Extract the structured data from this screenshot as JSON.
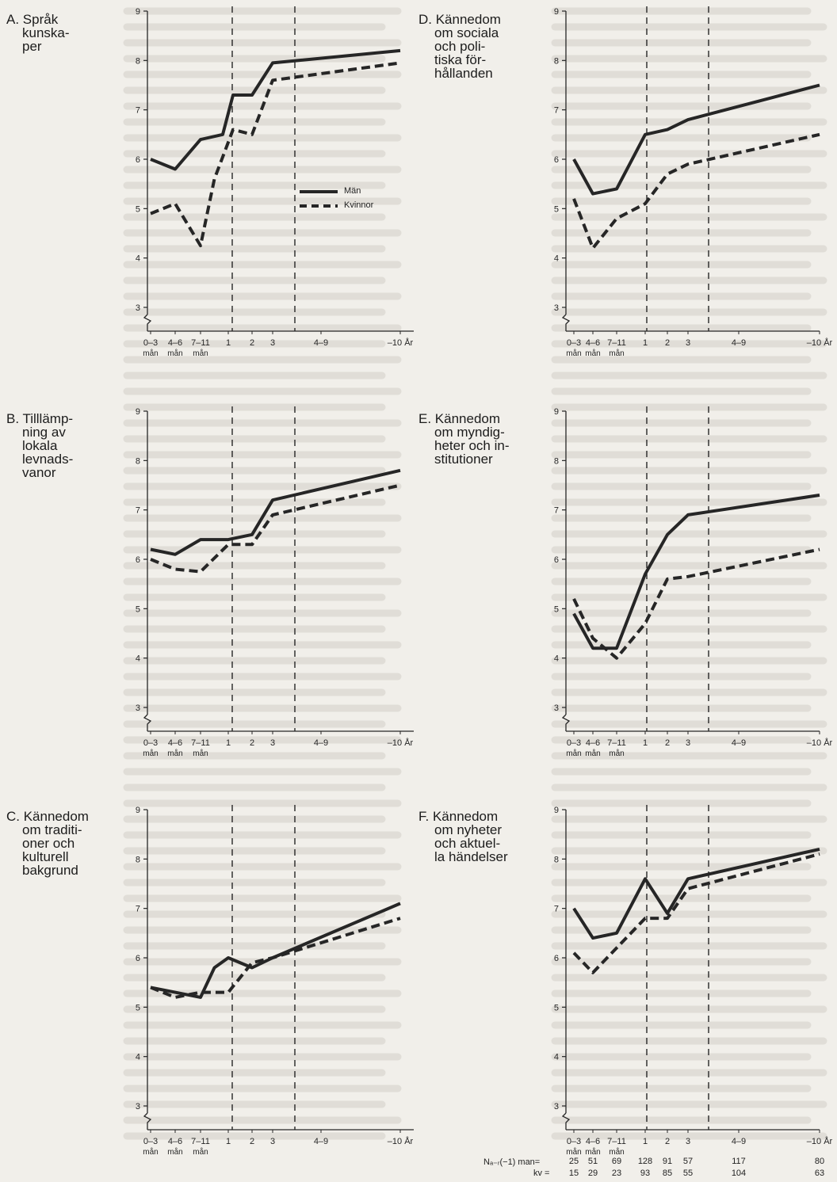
{
  "colors": {
    "ink": "#262626",
    "paper": "#f1efea"
  },
  "legend": {
    "solid_label": "Män",
    "dashed_label": "Kvinnor"
  },
  "footer": {
    "man_label": "Nₐ₋ᵣ(−1) man=",
    "kv_label": "kv =",
    "man_values": [
      "25",
      "51",
      "69",
      "128",
      "91",
      "57",
      "117",
      "80"
    ],
    "kv_values": [
      "15",
      "29",
      "23",
      "93",
      "85",
      "55",
      "104",
      "63"
    ]
  },
  "chart_data": [
    {
      "id": "A",
      "type": "line",
      "title_lines": [
        "A. Språk",
        "kunska-",
        "per"
      ],
      "x_tick_labels": [
        "0–3",
        "4–6",
        "7–11",
        "1",
        "2",
        "3",
        "4–9",
        "–10 År"
      ],
      "x_sub_labels": [
        "mån",
        "mån",
        "mån"
      ],
      "y_ticks": [
        3,
        4,
        5,
        6,
        7,
        8,
        9
      ],
      "ylim": [
        3,
        9
      ],
      "series": [
        {
          "name": "Män",
          "style": "solid",
          "points": [
            [
              0,
              6.0
            ],
            [
              1,
              5.8
            ],
            [
              2,
              6.4
            ],
            [
              2.8,
              6.5
            ],
            [
              3.2,
              7.3
            ],
            [
              4,
              7.3
            ],
            [
              5,
              7.95
            ],
            [
              7,
              8.2
            ]
          ]
        },
        {
          "name": "Kvinnor",
          "style": "dashed",
          "points": [
            [
              0,
              4.9
            ],
            [
              1,
              5.1
            ],
            [
              2,
              4.25
            ],
            [
              2.5,
              5.6
            ],
            [
              3.2,
              6.6
            ],
            [
              4,
              6.5
            ],
            [
              5,
              7.6
            ],
            [
              7,
              7.95
            ]
          ]
        }
      ]
    },
    {
      "id": "B",
      "type": "line",
      "title_lines": [
        "B. Tilllämp-",
        "ning av",
        "lokala",
        "levnads-",
        "vanor"
      ],
      "x_tick_labels": [
        "0–3",
        "4–6",
        "7–11",
        "1",
        "2",
        "3",
        "4–9",
        "–10 År"
      ],
      "x_sub_labels": [
        "mån",
        "mån",
        "mån"
      ],
      "y_ticks": [
        3,
        4,
        5,
        6,
        7,
        8,
        9
      ],
      "ylim": [
        3,
        9
      ],
      "series": [
        {
          "name": "Män",
          "style": "solid",
          "points": [
            [
              0,
              6.2
            ],
            [
              1,
              6.1
            ],
            [
              2,
              6.4
            ],
            [
              3,
              6.4
            ],
            [
              4,
              6.5
            ],
            [
              5,
              7.2
            ],
            [
              7,
              7.8
            ]
          ]
        },
        {
          "name": "Kvinnor",
          "style": "dashed",
          "points": [
            [
              0,
              6.0
            ],
            [
              1,
              5.8
            ],
            [
              2,
              5.75
            ],
            [
              3,
              6.3
            ],
            [
              4,
              6.3
            ],
            [
              5,
              6.9
            ],
            [
              7,
              7.5
            ]
          ]
        }
      ]
    },
    {
      "id": "C",
      "type": "line",
      "title_lines": [
        "C. Kännedom",
        "om traditi-",
        "oner och",
        "kulturell",
        "bakgrund"
      ],
      "x_tick_labels": [
        "0–3",
        "4–6",
        "7–11",
        "1",
        "2",
        "3",
        "4–9",
        "–10 År"
      ],
      "x_sub_labels": [
        "mån",
        "mån",
        "mån"
      ],
      "y_ticks": [
        3,
        4,
        5,
        6,
        7,
        8,
        9
      ],
      "ylim": [
        3,
        9
      ],
      "series": [
        {
          "name": "Män",
          "style": "solid",
          "points": [
            [
              0,
              5.4
            ],
            [
              1,
              5.3
            ],
            [
              2,
              5.2
            ],
            [
              2.5,
              5.8
            ],
            [
              3,
              6.0
            ],
            [
              4,
              5.8
            ],
            [
              5,
              6.0
            ],
            [
              7,
              7.1
            ]
          ]
        },
        {
          "name": "Kvinnor",
          "style": "dashed",
          "points": [
            [
              0,
              5.4
            ],
            [
              1,
              5.2
            ],
            [
              2,
              5.3
            ],
            [
              3,
              5.3
            ],
            [
              4,
              5.9
            ],
            [
              5,
              6.0
            ],
            [
              7,
              6.8
            ]
          ]
        }
      ]
    },
    {
      "id": "D",
      "type": "line",
      "title_lines": [
        "D. Kännedom",
        "om sociala",
        "och poli-",
        "tiska för-",
        "hållanden"
      ],
      "x_tick_labels": [
        "0–3",
        "4–6",
        "7–11",
        "1",
        "2",
        "3",
        "4–9",
        "–10 År"
      ],
      "x_sub_labels": [
        "mån",
        "mån",
        "mån"
      ],
      "y_ticks": [
        3,
        4,
        5,
        6,
        7,
        8,
        9
      ],
      "ylim": [
        3,
        9
      ],
      "series": [
        {
          "name": "Män",
          "style": "solid",
          "points": [
            [
              0,
              6.0
            ],
            [
              1,
              5.3
            ],
            [
              2,
              5.4
            ],
            [
              3,
              6.5
            ],
            [
              4,
              6.6
            ],
            [
              5,
              6.8
            ],
            [
              7,
              7.5
            ]
          ]
        },
        {
          "name": "Kvinnor",
          "style": "dashed",
          "points": [
            [
              0,
              5.2
            ],
            [
              1,
              4.2
            ],
            [
              2,
              4.8
            ],
            [
              3,
              5.1
            ],
            [
              4,
              5.7
            ],
            [
              5,
              5.9
            ],
            [
              7,
              6.5
            ]
          ]
        }
      ]
    },
    {
      "id": "E",
      "type": "line",
      "title_lines": [
        "E. Kännedom",
        "om myndig-",
        "heter och in-",
        "stitutioner"
      ],
      "x_tick_labels": [
        "0–3",
        "4–6",
        "7–11",
        "1",
        "2",
        "3",
        "4–9",
        "–10 År"
      ],
      "x_sub_labels": [
        "mån",
        "mån",
        "mån"
      ],
      "y_ticks": [
        3,
        4,
        5,
        6,
        7,
        8,
        9
      ],
      "ylim": [
        3,
        9
      ],
      "series": [
        {
          "name": "Män",
          "style": "solid",
          "points": [
            [
              0,
              4.9
            ],
            [
              1,
              4.2
            ],
            [
              2,
              4.2
            ],
            [
              3,
              5.7
            ],
            [
              4,
              6.5
            ],
            [
              5,
              6.9
            ],
            [
              7,
              7.3
            ]
          ]
        },
        {
          "name": "Kvinnor",
          "style": "dashed",
          "points": [
            [
              0,
              5.2
            ],
            [
              1,
              4.4
            ],
            [
              2,
              4.0
            ],
            [
              3,
              4.7
            ],
            [
              4,
              5.6
            ],
            [
              5,
              5.65
            ],
            [
              7,
              6.2
            ]
          ]
        }
      ]
    },
    {
      "id": "F",
      "type": "line",
      "title_lines": [
        "F. Kännedom",
        "om nyheter",
        "och aktuel-",
        "la händelser"
      ],
      "x_tick_labels": [
        "0–3",
        "4–6",
        "7–11",
        "1",
        "2",
        "3",
        "4–9",
        "–10 År"
      ],
      "x_sub_labels": [
        "mån",
        "mån",
        "mån"
      ],
      "y_ticks": [
        3,
        4,
        5,
        6,
        7,
        8,
        9
      ],
      "ylim": [
        3,
        9
      ],
      "series": [
        {
          "name": "Män",
          "style": "solid",
          "points": [
            [
              0,
              7.0
            ],
            [
              1,
              6.4
            ],
            [
              2,
              6.5
            ],
            [
              3,
              7.6
            ],
            [
              4,
              6.9
            ],
            [
              5,
              7.6
            ],
            [
              7,
              8.2
            ]
          ]
        },
        {
          "name": "Kvinnor",
          "style": "dashed",
          "points": [
            [
              0,
              6.1
            ],
            [
              1,
              5.7
            ],
            [
              2,
              6.2
            ],
            [
              3,
              6.8
            ],
            [
              4,
              6.8
            ],
            [
              5,
              7.4
            ],
            [
              7,
              8.1
            ]
          ]
        }
      ]
    }
  ]
}
